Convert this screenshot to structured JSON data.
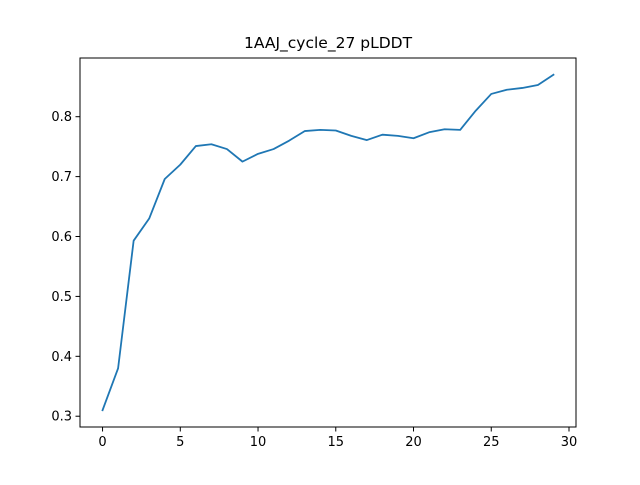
{
  "chart_data": {
    "type": "line",
    "title": "1AAJ_cycle_27 pLDDT",
    "xlabel": "",
    "ylabel": "",
    "xlim": [
      -1.45,
      30.45
    ],
    "ylim": [
      0.282,
      0.898
    ],
    "x_ticks": [
      0,
      5,
      10,
      15,
      20,
      25,
      30
    ],
    "y_ticks": [
      0.3,
      0.4,
      0.5,
      0.6,
      0.7,
      0.8
    ],
    "grid": false,
    "series": [
      {
        "color": "#1f77b4",
        "x": [
          0,
          1,
          2,
          3,
          4,
          5,
          6,
          7,
          8,
          9,
          10,
          11,
          12,
          13,
          14,
          15,
          16,
          17,
          18,
          19,
          20,
          21,
          22,
          23,
          24,
          25,
          26,
          27,
          28,
          29
        ],
        "values": [
          0.31,
          0.38,
          0.593,
          0.63,
          0.696,
          0.72,
          0.751,
          0.754,
          0.746,
          0.725,
          0.738,
          0.746,
          0.76,
          0.776,
          0.778,
          0.777,
          0.768,
          0.761,
          0.77,
          0.768,
          0.764,
          0.774,
          0.779,
          0.778,
          0.81,
          0.838,
          0.845,
          0.848,
          0.853,
          0.87
        ]
      }
    ]
  }
}
